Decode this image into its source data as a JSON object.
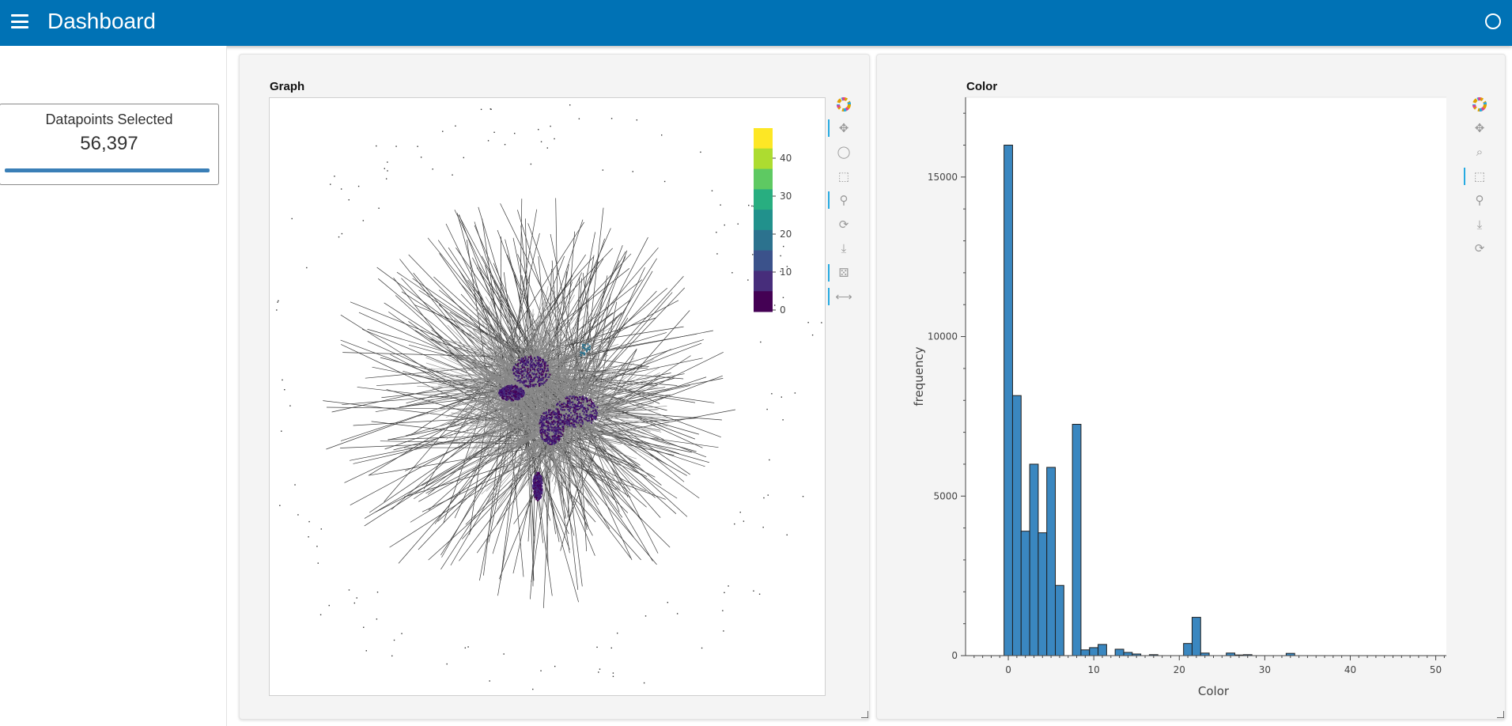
{
  "app": {
    "title": "Dashboard"
  },
  "indicator": {
    "label": "Datapoints Selected",
    "value": "56,397"
  },
  "graph_panel": {
    "title": "Graph",
    "colorbar": {
      "ticks": [
        "0",
        "10",
        "20",
        "30",
        "40"
      ],
      "colors": [
        "#440154",
        "#472d7b",
        "#3b528b",
        "#2c728e",
        "#21918c",
        "#28ae80",
        "#5ec962",
        "#addc30",
        "#fde725"
      ]
    }
  },
  "color_panel": {
    "title": "Color"
  },
  "icons": {
    "menu": "hamburger-icon",
    "theme": "theme-toggle-icon",
    "bokeh": "bokeh-logo-icon"
  },
  "colors": {
    "topbar": "#0072b5",
    "bar_fill": "#3a87c0",
    "bar_stroke": "#1f1f1f",
    "indicator_bar": "#3a7fb7"
  },
  "chart_data": {
    "type": "bar",
    "title": "",
    "xlabel": "Color",
    "ylabel": "frequency",
    "xlim": [
      -5,
      53
    ],
    "ylim": [
      0,
      17500
    ],
    "x_ticks": [
      "0",
      "10",
      "20",
      "30",
      "40",
      "50"
    ],
    "y_ticks": [
      "0",
      "5000",
      "10000",
      "15000"
    ],
    "bin_width": 1,
    "bins": [
      0,
      1,
      2,
      3,
      4,
      5,
      6,
      7,
      8,
      9,
      10,
      11,
      12,
      13,
      14,
      15,
      16,
      17,
      18,
      19,
      20,
      21,
      22,
      23,
      24,
      25,
      26,
      27,
      28,
      29,
      30,
      31,
      32,
      33
    ],
    "values": [
      16000,
      8150,
      3900,
      6000,
      3850,
      5900,
      2200,
      0,
      7250,
      180,
      250,
      350,
      0,
      200,
      100,
      50,
      0,
      30,
      0,
      0,
      0,
      380,
      1200,
      80,
      0,
      0,
      80,
      20,
      30,
      0,
      0,
      0,
      0,
      70
    ]
  }
}
